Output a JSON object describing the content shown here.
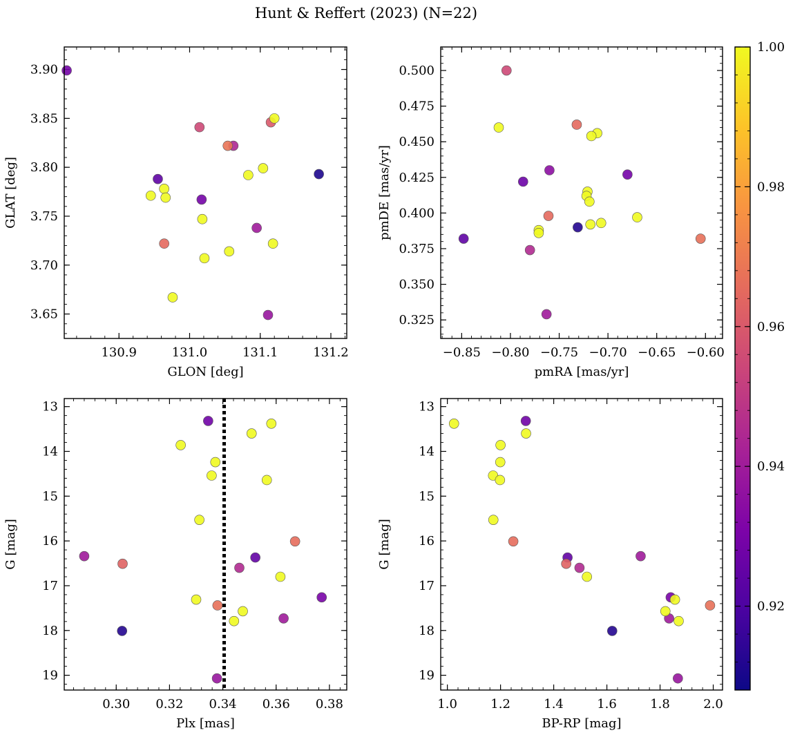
{
  "chart_data": {
    "title": "Hunt & Reffert (2023) (N=22)",
    "colorbar": {
      "range": [
        0.908,
        1.0
      ],
      "ticks": [
        0.92,
        0.94,
        0.96,
        0.98,
        1.0
      ],
      "tick_labels": [
        "0.92",
        "0.94",
        "0.96",
        "0.98",
        "1.00"
      ],
      "colormap": "plasma"
    },
    "panels": [
      {
        "type": "scatter",
        "xlabel": "GLON [deg]",
        "ylabel": "GLAT [deg]",
        "xlim": [
          130.8225,
          131.2225
        ],
        "ylim": [
          3.625,
          3.923
        ],
        "y_inverted": false,
        "xticks": [
          130.8,
          130.9,
          131.0,
          131.1,
          131.2
        ],
        "xtick_labels": [
          "130.8",
          "130.9",
          "131.0",
          "131.1",
          "131.2"
        ],
        "xminor": 0.02,
        "yticks": [
          3.65,
          3.7,
          3.75,
          3.8,
          3.85,
          3.9
        ],
        "ytick_labels": [
          "3.65",
          "3.70",
          "3.75",
          "3.80",
          "3.85",
          "3.90"
        ],
        "yminor": 0.01,
        "points": [
          {
            "x": 130.826,
            "y": 3.899,
            "c": 0.929
          },
          {
            "x": 131.183,
            "y": 3.793,
            "c": 0.911
          },
          {
            "x": 130.955,
            "y": 3.788,
            "c": 0.924
          },
          {
            "x": 131.017,
            "y": 3.767,
            "c": 0.929
          },
          {
            "x": 131.095,
            "y": 3.738,
            "c": 0.94
          },
          {
            "x": 131.111,
            "y": 3.649,
            "c": 0.938
          },
          {
            "x": 131.062,
            "y": 3.822,
            "c": 0.944
          },
          {
            "x": 131.014,
            "y": 3.841,
            "c": 0.955
          },
          {
            "x": 131.115,
            "y": 3.846,
            "c": 0.96
          },
          {
            "x": 131.054,
            "y": 3.822,
            "c": 0.968
          },
          {
            "x": 130.964,
            "y": 3.722,
            "c": 0.965
          },
          {
            "x": 131.12,
            "y": 3.85,
            "c": 1.0
          },
          {
            "x": 130.964,
            "y": 3.778,
            "c": 1.0
          },
          {
            "x": 130.945,
            "y": 3.771,
            "c": 1.0
          },
          {
            "x": 130.966,
            "y": 3.769,
            "c": 1.0
          },
          {
            "x": 131.083,
            "y": 3.792,
            "c": 1.0
          },
          {
            "x": 131.104,
            "y": 3.799,
            "c": 1.0
          },
          {
            "x": 131.018,
            "y": 3.747,
            "c": 1.0
          },
          {
            "x": 131.118,
            "y": 3.722,
            "c": 1.0
          },
          {
            "x": 131.056,
            "y": 3.714,
            "c": 1.0
          },
          {
            "x": 131.021,
            "y": 3.707,
            "c": 1.0
          },
          {
            "x": 130.976,
            "y": 3.667,
            "c": 1.0
          }
        ]
      },
      {
        "type": "scatter",
        "xlabel": "pmRA [mas/yr]",
        "ylabel": "pmDE [mas/yr]",
        "xlim": [
          -0.8715,
          -0.5825
        ],
        "ylim": [
          0.312,
          0.5165
        ],
        "y_inverted": false,
        "xticks": [
          -0.85,
          -0.8,
          -0.75,
          -0.7,
          -0.65,
          -0.6
        ],
        "xtick_labels": [
          "−0.85",
          "−0.80",
          "−0.75",
          "−0.70",
          "−0.65",
          "−0.60"
        ],
        "xminor": 0.01,
        "yticks": [
          0.325,
          0.35,
          0.375,
          0.4,
          0.425,
          0.45,
          0.475,
          0.5
        ],
        "ytick_labels": [
          "0.325",
          "0.350",
          "0.375",
          "0.400",
          "0.425",
          "0.450",
          "0.475",
          "0.500"
        ],
        "yminor": 0.005,
        "points": [
          {
            "x": -0.848,
            "y": 0.382,
            "c": 0.924
          },
          {
            "x": -0.787,
            "y": 0.422,
            "c": 0.927
          },
          {
            "x": -0.76,
            "y": 0.43,
            "c": 0.935
          },
          {
            "x": -0.68,
            "y": 0.427,
            "c": 0.929
          },
          {
            "x": -0.731,
            "y": 0.39,
            "c": 0.912
          },
          {
            "x": -0.78,
            "y": 0.374,
            "c": 0.945
          },
          {
            "x": -0.763,
            "y": 0.329,
            "c": 0.94
          },
          {
            "x": -0.804,
            "y": 0.5,
            "c": 0.955
          },
          {
            "x": -0.732,
            "y": 0.462,
            "c": 0.965
          },
          {
            "x": -0.761,
            "y": 0.398,
            "c": 0.965
          },
          {
            "x": -0.605,
            "y": 0.382,
            "c": 0.967
          },
          {
            "x": -0.812,
            "y": 0.46,
            "c": 1.0
          },
          {
            "x": -0.711,
            "y": 0.456,
            "c": 1.0
          },
          {
            "x": -0.717,
            "y": 0.454,
            "c": 1.0
          },
          {
            "x": -0.721,
            "y": 0.415,
            "c": 1.0
          },
          {
            "x": -0.722,
            "y": 0.412,
            "c": 1.0
          },
          {
            "x": -0.719,
            "y": 0.408,
            "c": 1.0
          },
          {
            "x": -0.771,
            "y": 0.388,
            "c": 1.0
          },
          {
            "x": -0.771,
            "y": 0.386,
            "c": 1.0
          },
          {
            "x": -0.718,
            "y": 0.392,
            "c": 1.0
          },
          {
            "x": -0.707,
            "y": 0.393,
            "c": 1.0
          },
          {
            "x": -0.67,
            "y": 0.397,
            "c": 1.0
          }
        ]
      },
      {
        "type": "scatter",
        "xlabel": "Plx [mas]",
        "ylabel": "G [mag]",
        "xlim": [
          0.2805,
          0.3865
        ],
        "ylim": [
          12.82,
          19.33
        ],
        "y_inverted": true,
        "xticks": [
          0.28,
          0.3,
          0.32,
          0.34,
          0.36,
          0.38
        ],
        "xtick_labels": [
          "0.28",
          "0.30",
          "0.32",
          "0.34",
          "0.36",
          "0.38"
        ],
        "xminor": 0.004,
        "yticks": [
          13,
          14,
          15,
          16,
          17,
          18,
          19
        ],
        "ytick_labels": [
          "13",
          "14",
          "15",
          "16",
          "17",
          "18",
          "19"
        ],
        "yminor": 0.2,
        "reference_x": 0.3405,
        "points": [
          {
            "x": 0.3345,
            "y": 13.32,
            "c": 0.928
          },
          {
            "x": 0.288,
            "y": 16.34,
            "c": 0.94
          },
          {
            "x": 0.3522,
            "y": 16.37,
            "c": 0.925
          },
          {
            "x": 0.3771,
            "y": 17.26,
            "c": 0.93
          },
          {
            "x": 0.3022,
            "y": 18.01,
            "c": 0.912
          },
          {
            "x": 0.3462,
            "y": 16.6,
            "c": 0.945
          },
          {
            "x": 0.3628,
            "y": 17.73,
            "c": 0.94
          },
          {
            "x": 0.3378,
            "y": 19.07,
            "c": 0.938
          },
          {
            "x": 0.3024,
            "y": 16.51,
            "c": 0.963
          },
          {
            "x": 0.3671,
            "y": 16.01,
            "c": 0.966
          },
          {
            "x": 0.338,
            "y": 17.44,
            "c": 0.967
          },
          {
            "x": 0.3582,
            "y": 13.38,
            "c": 1.0
          },
          {
            "x": 0.3508,
            "y": 13.6,
            "c": 1.0
          },
          {
            "x": 0.3242,
            "y": 13.86,
            "c": 1.0
          },
          {
            "x": 0.3372,
            "y": 14.24,
            "c": 1.0
          },
          {
            "x": 0.3358,
            "y": 14.54,
            "c": 1.0
          },
          {
            "x": 0.3565,
            "y": 14.64,
            "c": 1.0
          },
          {
            "x": 0.3312,
            "y": 15.53,
            "c": 1.0
          },
          {
            "x": 0.3616,
            "y": 16.8,
            "c": 1.0
          },
          {
            "x": 0.33,
            "y": 17.31,
            "c": 1.0
          },
          {
            "x": 0.3475,
            "y": 17.57,
            "c": 1.0
          },
          {
            "x": 0.3442,
            "y": 17.79,
            "c": 1.0
          }
        ]
      },
      {
        "type": "scatter",
        "xlabel": "BP-RP [mag]",
        "ylabel": "G [mag]",
        "xlim": [
          0.975,
          2.035
        ],
        "ylim": [
          12.82,
          19.33
        ],
        "y_inverted": true,
        "xticks": [
          1.0,
          1.2,
          1.4,
          1.6,
          1.8,
          2.0
        ],
        "xtick_labels": [
          "1.0",
          "1.2",
          "1.4",
          "1.6",
          "1.8",
          "2.0"
        ],
        "xminor": 0.04,
        "yticks": [
          13,
          14,
          15,
          16,
          17,
          18,
          19
        ],
        "ytick_labels": [
          "13",
          "14",
          "15",
          "16",
          "17",
          "18",
          "19"
        ],
        "yminor": 0.2,
        "points": [
          {
            "x": 1.295,
            "y": 13.32,
            "c": 0.928
          },
          {
            "x": 1.727,
            "y": 16.34,
            "c": 0.94
          },
          {
            "x": 1.452,
            "y": 16.37,
            "c": 0.925
          },
          {
            "x": 1.84,
            "y": 17.26,
            "c": 0.93
          },
          {
            "x": 1.62,
            "y": 18.01,
            "c": 0.912
          },
          {
            "x": 1.497,
            "y": 16.6,
            "c": 0.945
          },
          {
            "x": 1.834,
            "y": 17.73,
            "c": 0.94
          },
          {
            "x": 1.867,
            "y": 19.07,
            "c": 0.938
          },
          {
            "x": 1.447,
            "y": 16.51,
            "c": 0.963
          },
          {
            "x": 1.248,
            "y": 16.01,
            "c": 0.966
          },
          {
            "x": 1.988,
            "y": 17.44,
            "c": 0.967
          },
          {
            "x": 1.025,
            "y": 13.38,
            "c": 1.0
          },
          {
            "x": 1.296,
            "y": 13.6,
            "c": 1.0
          },
          {
            "x": 1.2,
            "y": 13.86,
            "c": 1.0
          },
          {
            "x": 1.199,
            "y": 14.24,
            "c": 1.0
          },
          {
            "x": 1.172,
            "y": 14.54,
            "c": 1.0
          },
          {
            "x": 1.198,
            "y": 14.64,
            "c": 1.0
          },
          {
            "x": 1.173,
            "y": 15.53,
            "c": 1.0
          },
          {
            "x": 1.525,
            "y": 16.8,
            "c": 1.0
          },
          {
            "x": 1.856,
            "y": 17.31,
            "c": 1.0
          },
          {
            "x": 1.82,
            "y": 17.57,
            "c": 1.0
          },
          {
            "x": 1.87,
            "y": 17.79,
            "c": 1.0
          }
        ]
      }
    ]
  }
}
